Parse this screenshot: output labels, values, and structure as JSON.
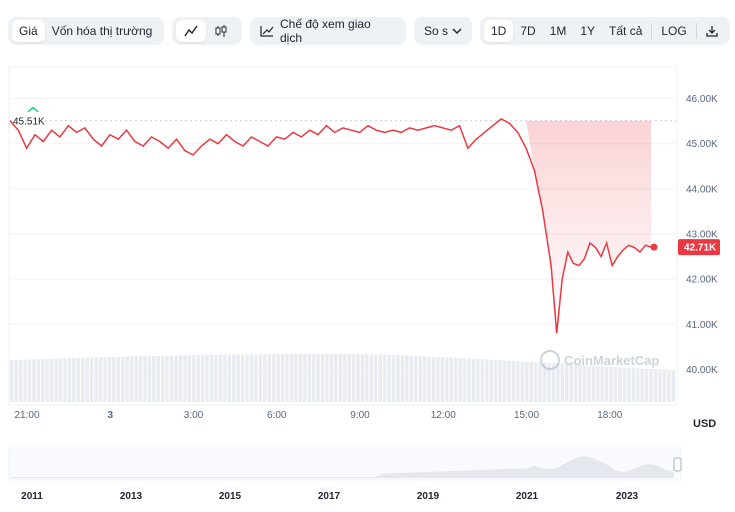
{
  "toolbar": {
    "view_tabs": [
      "Giá",
      "Vốn hóa thị trường"
    ],
    "chart_mode_icons": [
      "line-chart-icon",
      "candlestick-icon"
    ],
    "view_mode_label": "Chế độ xem giao dịch",
    "compare_label": "So s",
    "ranges": [
      "1D",
      "7D",
      "1M",
      "1Y",
      "Tất cả"
    ],
    "log_label": "LOG",
    "download_icon": "download-icon",
    "active_range": "1D"
  },
  "watermark": "CoinMarketCap",
  "currency_label": "USD",
  "colors": {
    "line": "#ea3943",
    "price_badge": "#ea3943",
    "volume": "#e8ebf0",
    "start_marker": "#16c784",
    "navigator_area": "#e4e8ee"
  },
  "chart_data": {
    "type": "line",
    "title": "",
    "xlabel": "",
    "ylabel": "",
    "y_unit": "USD",
    "ylim": [
      39500,
      46500
    ],
    "yticks": [
      "46.00K",
      "45.00K",
      "44.00K",
      "43.00K",
      "42.00K",
      "41.00K",
      "40.00K"
    ],
    "ytick_values": [
      46000,
      45000,
      44000,
      43000,
      42000,
      41000,
      40000
    ],
    "xticks": [
      "21:00",
      "3",
      "3:00",
      "6:00",
      "9:00",
      "12:00",
      "15:00",
      "18:00"
    ],
    "xtick_hours": [
      0,
      3,
      6,
      9,
      12,
      15,
      18,
      21
    ],
    "xlim_hours": [
      0,
      24
    ],
    "open_label": "45.51K",
    "open_value": 45510,
    "current_label": "42.71K",
    "current_value": 42710,
    "series": [
      {
        "x": [
          0,
          0.3,
          0.6,
          0.9,
          1.2,
          1.5,
          1.8,
          2.1,
          2.4,
          2.7,
          3.0,
          3.3,
          3.6,
          3.9,
          4.2,
          4.5,
          4.8,
          5.1,
          5.4,
          5.7,
          6.0,
          6.3,
          6.6,
          6.9,
          7.2,
          7.5,
          7.8,
          8.1,
          8.4,
          8.7,
          9.0,
          9.3,
          9.6,
          9.9,
          10.2,
          10.5,
          10.8,
          11.1,
          11.4,
          11.7,
          12.0,
          12.3,
          12.6,
          12.9,
          13.2,
          13.5,
          13.8,
          14.1,
          14.4,
          14.7,
          15.0,
          15.3,
          15.6,
          15.9,
          16.2,
          16.5,
          16.8,
          17.1,
          17.4,
          17.7,
          18.0,
          18.3,
          18.6,
          18.9,
          19.2,
          19.5,
          19.7,
          19.9,
          20.1,
          20.3,
          20.5,
          20.7,
          20.9,
          21.1,
          21.3,
          21.5,
          21.7,
          21.9,
          22.1,
          22.3,
          22.5,
          22.7,
          22.9,
          23.1
        ],
        "y": [
          45510,
          45300,
          44900,
          45200,
          45050,
          45300,
          45150,
          45400,
          45250,
          45350,
          45100,
          44950,
          45200,
          45100,
          45300,
          45050,
          44950,
          45150,
          45050,
          44900,
          45100,
          44850,
          44750,
          44950,
          45100,
          45000,
          45200,
          45050,
          44950,
          45150,
          45050,
          44950,
          45150,
          45100,
          45250,
          45150,
          45300,
          45200,
          45400,
          45250,
          45350,
          45300,
          45250,
          45400,
          45300,
          45250,
          45300,
          45250,
          45350,
          45300,
          45350,
          45400,
          45350,
          45300,
          45400,
          44900,
          45100,
          45250,
          45400,
          45550,
          45450,
          45250,
          44900,
          44400,
          43500,
          42300,
          40800,
          42000,
          42600,
          42350,
          42300,
          42450,
          42800,
          42700,
          42500,
          42800,
          42300,
          42500,
          42650,
          42750,
          42700,
          42600,
          42750,
          42710
        ]
      }
    ],
    "navigator": {
      "xticks": [
        "2011",
        "2013",
        "2015",
        "2017",
        "2019",
        "2021",
        "2023"
      ]
    }
  }
}
